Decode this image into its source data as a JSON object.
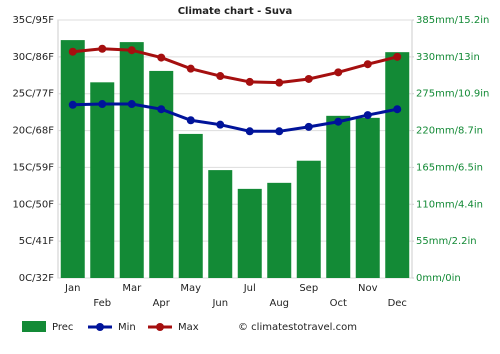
{
  "chart_data": {
    "type": "bar",
    "title": "Climate chart - Suva",
    "categories": [
      "Jan",
      "Feb",
      "Mar",
      "Apr",
      "May",
      "Jun",
      "Jul",
      "Aug",
      "Sep",
      "Oct",
      "Nov",
      "Dec"
    ],
    "series": [
      {
        "name": "Prec",
        "type": "bar",
        "axis": "y2",
        "color": "#138a36",
        "values": [
          355,
          292,
          352,
          309,
          215,
          161,
          133,
          142,
          175,
          242,
          239,
          337
        ]
      },
      {
        "name": "Min",
        "type": "line",
        "color": "#00139a",
        "values": [
          23.5,
          23.6,
          23.6,
          22.9,
          21.4,
          20.8,
          19.9,
          19.9,
          20.5,
          21.2,
          22.1,
          22.9
        ]
      },
      {
        "name": "Max",
        "type": "line",
        "color": "#a50f0f",
        "values": [
          30.7,
          31.1,
          30.9,
          29.9,
          28.4,
          27.4,
          26.6,
          26.5,
          27.0,
          27.9,
          29.0,
          30.0
        ]
      }
    ],
    "ylim": [
      0,
      35
    ],
    "yticks": [
      {
        "value": 0,
        "label": "0C/32F"
      },
      {
        "value": 5,
        "label": "5C/41F"
      },
      {
        "value": 10,
        "label": "10C/50F"
      },
      {
        "value": 15,
        "label": "15C/59F"
      },
      {
        "value": 20,
        "label": "20C/68F"
      },
      {
        "value": 25,
        "label": "25C/77F"
      },
      {
        "value": 30,
        "label": "30C/86F"
      },
      {
        "value": 35,
        "label": "35C/95F"
      }
    ],
    "y2lim": [
      0,
      385
    ],
    "y2ticks": [
      {
        "value": 0,
        "label": "0mm/0in"
      },
      {
        "value": 55,
        "label": "55mm/2.2in"
      },
      {
        "value": 110,
        "label": "110mm/4.4in"
      },
      {
        "value": 165,
        "label": "165mm/6.5in"
      },
      {
        "value": 220,
        "label": "220mm/8.7in"
      },
      {
        "value": 275,
        "label": "275mm/10.9in"
      },
      {
        "value": 330,
        "label": "330mm/13in"
      },
      {
        "value": 385,
        "label": "385mm/15.2in"
      }
    ],
    "grid": true,
    "watermark": "© climatestotravel.com"
  }
}
